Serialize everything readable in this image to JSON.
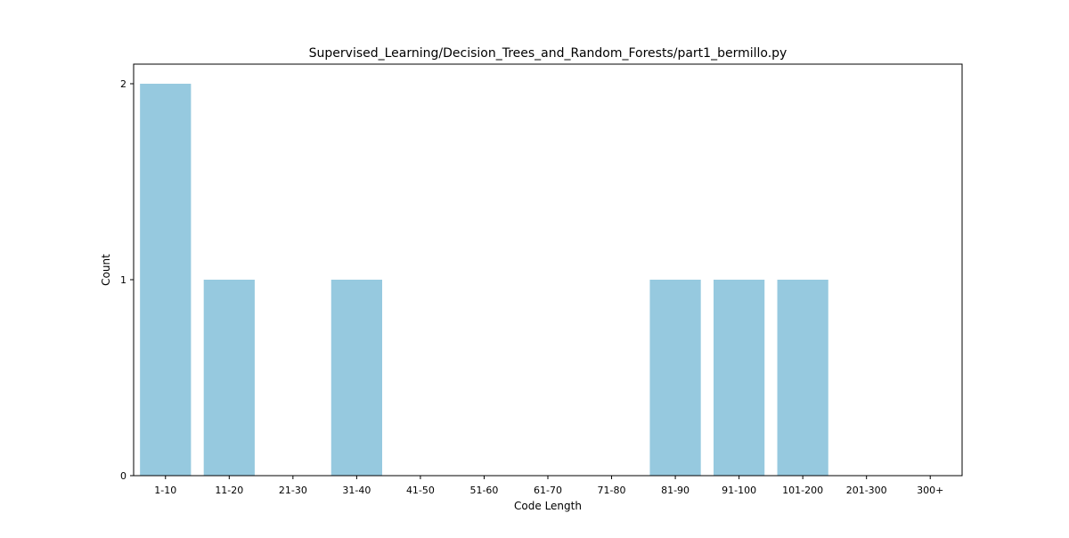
{
  "chart_data": {
    "type": "bar",
    "title": "Supervised_Learning/Decision_Trees_and_Random_Forests/part1_bermillo.py",
    "xlabel": "Code Length",
    "ylabel": "Count",
    "categories": [
      "1-10",
      "11-20",
      "21-30",
      "31-40",
      "41-50",
      "51-60",
      "61-70",
      "71-80",
      "81-90",
      "91-100",
      "101-200",
      "201-300",
      "300+"
    ],
    "values": [
      2,
      1,
      0,
      1,
      0,
      0,
      0,
      0,
      1,
      1,
      1,
      0,
      0
    ],
    "ylim": [
      0,
      2.1
    ],
    "yticks": [
      0,
      1,
      2
    ],
    "grid": false,
    "bar_color": "#96c9df"
  }
}
